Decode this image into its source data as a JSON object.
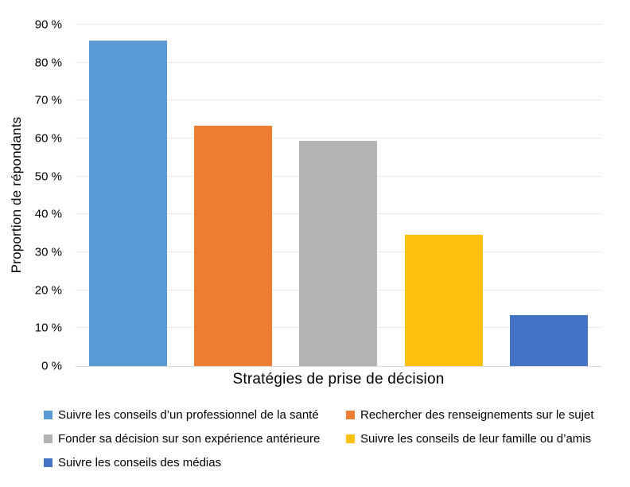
{
  "chart_data": {
    "type": "bar",
    "title": "",
    "xlabel": "Stratégies de prise de décision",
    "ylabel": "Proportion de répondants",
    "categories": [
      "Suivre les conseils d’un professionnel de la santé",
      "Rechercher des renseignements sur le sujet",
      "Fonder sa décision sur son expérience antérieure",
      "Suivre les conseils de leur famille ou d’amis",
      "Suivre les conseils des médias"
    ],
    "values": [
      85.8,
      63.3,
      59.3,
      34.6,
      13.4
    ],
    "bar_colors": [
      "#5B9BD5",
      "#ED7D31",
      "#B3B3B3",
      "#FFC010",
      "#4472C4"
    ],
    "ylim": [
      0,
      90
    ],
    "ytick_labels": [
      "0 %",
      "10 %",
      "20 %",
      "30 %",
      "40 %",
      "50 %",
      "60 %",
      "70 %",
      "80 %",
      "90 %"
    ],
    "grid": true,
    "legend_position": "bottom",
    "gridline_color": "#E8E8E8",
    "baseline_color": "#D9D9D9",
    "text_color": "#000000",
    "background_color": "#FFFFFF"
  },
  "legend": {
    "items": [
      {
        "label": "Suivre les conseils d’un professionnel de la santé",
        "color": "#5B9BD5"
      },
      {
        "label": "Rechercher des renseignements sur le sujet",
        "color": "#ED7D31"
      },
      {
        "label": "Fonder sa décision sur son expérience antérieure",
        "color": "#B3B3B3"
      },
      {
        "label": "Suivre les conseils de leur famille ou d’amis",
        "color": "#FFC010"
      },
      {
        "label": "Suivre les conseils des médias",
        "color": "#4472C4"
      }
    ]
  }
}
